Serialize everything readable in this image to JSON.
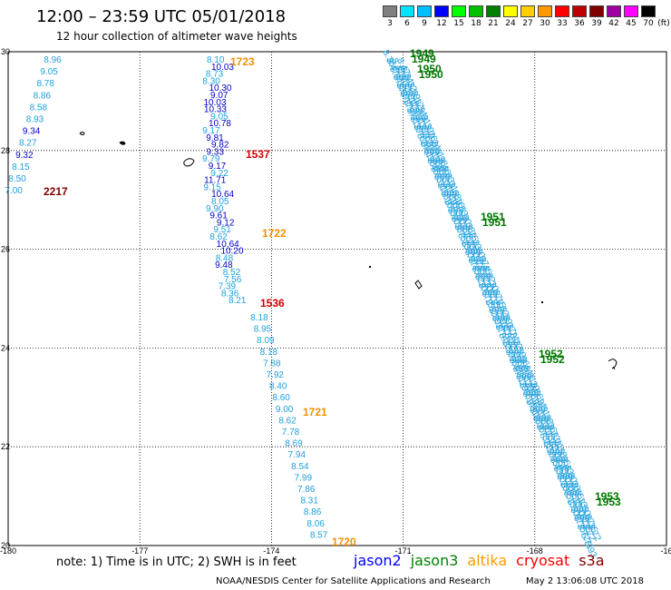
{
  "header": {
    "title": "12:00 – 23:59 UTC 05/01/2018",
    "subtitle": "12 hour collection of altimeter wave heights"
  },
  "color_legend": {
    "unit": "(ft)",
    "bins": [
      {
        "label": "3",
        "color": "#808080"
      },
      {
        "label": "6",
        "color": "#00e5ff"
      },
      {
        "label": "9",
        "color": "#00bfff"
      },
      {
        "label": "12",
        "color": "#0000ff"
      },
      {
        "label": "15",
        "color": "#00ff00"
      },
      {
        "label": "18",
        "color": "#00c000"
      },
      {
        "label": "21",
        "color": "#008000"
      },
      {
        "label": "24",
        "color": "#ffff00"
      },
      {
        "label": "27",
        "color": "#ffd000"
      },
      {
        "label": "30",
        "color": "#ff9900"
      },
      {
        "label": "33",
        "color": "#ff0000"
      },
      {
        "label": "36",
        "color": "#c00000"
      },
      {
        "label": "39",
        "color": "#800000"
      },
      {
        "label": "42",
        "color": "#a000a0"
      },
      {
        "label": "45",
        "color": "#ff00ff"
      },
      {
        "label": "70",
        "color": "#000000"
      }
    ]
  },
  "map": {
    "lon_min": -180,
    "lon_max": -165,
    "lat_min": 20,
    "lat_max": 30,
    "lon_labels": [
      "-180",
      "-177",
      "-174",
      "-171",
      "-168",
      "-16"
    ],
    "lat_labels": [
      "30",
      "28",
      "26",
      "24",
      "22",
      "20"
    ]
  },
  "colors": {
    "light": "#1e9fdc",
    "dark": "#0000c8",
    "jason3": "#007700",
    "altika": "#f29000",
    "cryosat": "#d00000",
    "maroon": "#800000"
  },
  "track_west": {
    "values": [
      "8.96",
      "9.05",
      "8.78",
      "8.86",
      "8.58",
      "8.93",
      "9.34",
      "8.27",
      "9.32",
      "8.15",
      "8.50",
      "7.00"
    ],
    "dark_indices": [
      6,
      8
    ],
    "time_label": "2217"
  },
  "track_mid": {
    "values": [
      "8.10",
      "10.03",
      "8.73",
      "8.30",
      "10.30",
      "9.07",
      "10.03",
      "10.33",
      "9.05",
      "10.78",
      "9.17",
      "9.81",
      "9.82",
      "9.33",
      "9.79",
      "9.17",
      "9.22",
      "11.71",
      "9.15",
      "10.64",
      "8.05",
      "9.90",
      "9.61",
      "9.12",
      "9.51",
      "8.62",
      "10.64",
      "10.20",
      "8.48",
      "9.48",
      "8.52",
      "7.56",
      "7.39",
      "8.36",
      "8.21"
    ],
    "dark_indices": [
      1,
      4,
      5,
      6,
      7,
      9,
      11,
      12,
      13,
      15,
      17,
      19,
      22,
      23,
      26,
      27,
      29
    ],
    "time_labels": [
      {
        "text": "1537",
        "kind": "cryosat"
      },
      {
        "text": "1536",
        "kind": "cryosat"
      }
    ]
  },
  "track_south": {
    "values": [
      "8.18",
      "8.95",
      "8.09",
      "8.18",
      "7.88",
      "7.92",
      "8.40",
      "8.60",
      "9.00",
      "8.62",
      "7.78",
      "8.69",
      "7.94",
      "8.54",
      "7.99",
      "7.86",
      "8.31",
      "8.86",
      "8.06",
      "8.57"
    ]
  },
  "altika_labels": [
    "1723",
    "1722",
    "1721",
    "1720"
  ],
  "jason3_labels": [
    "1949",
    "1950",
    "1951",
    "1952",
    "1953"
  ],
  "jason3_track": {
    "first_value": "8.36",
    "last_values": [
      "6.71",
      "6.93"
    ]
  },
  "footer": {
    "note": "note:  1) Time is in UTC;  2) SWH is in feet",
    "satellites": [
      {
        "name": "jason2",
        "color": "#0000ff"
      },
      {
        "name": "jason3",
        "color": "#008000"
      },
      {
        "name": "altika",
        "color": "#ff9900"
      },
      {
        "name": "cryosat",
        "color": "#ff0000"
      },
      {
        "name": "s3a",
        "color": "#800000"
      }
    ],
    "credit": "NOAA/NESDIS Center for Satellite Applications and Research",
    "timestamp": "May  2 13:06:08 UTC 2018"
  }
}
